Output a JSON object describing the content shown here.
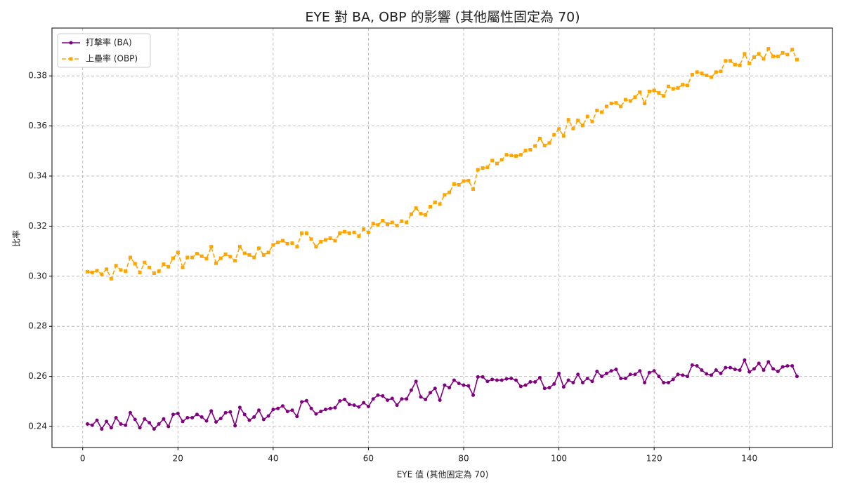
{
  "chart_data": {
    "type": "line",
    "title": "EYE 對 BA, OBP 的影響 (其他屬性固定為 70)",
    "x_label": "EYE 值 (其他固定為 70)",
    "y_label": "比率",
    "x": [
      1,
      2,
      3,
      4,
      5,
      6,
      7,
      8,
      9,
      10,
      11,
      12,
      13,
      14,
      15,
      16,
      17,
      18,
      19,
      20,
      21,
      22,
      23,
      24,
      25,
      26,
      27,
      28,
      29,
      30,
      31,
      32,
      33,
      34,
      35,
      36,
      37,
      38,
      39,
      40,
      41,
      42,
      43,
      44,
      45,
      46,
      47,
      48,
      49,
      50,
      51,
      52,
      53,
      54,
      55,
      56,
      57,
      58,
      59,
      60,
      61,
      62,
      63,
      64,
      65,
      66,
      67,
      68,
      69,
      70,
      71,
      72,
      73,
      74,
      75,
      76,
      77,
      78,
      79,
      80,
      81,
      82,
      83,
      84,
      85,
      86,
      87,
      88,
      89,
      90,
      91,
      92,
      93,
      94,
      95,
      96,
      97,
      98,
      99,
      100,
      101,
      102,
      103,
      104,
      105,
      106,
      107,
      108,
      109,
      110,
      111,
      112,
      113,
      114,
      115,
      116,
      117,
      118,
      119,
      120,
      121,
      122,
      123,
      124,
      125,
      126,
      127,
      128,
      129,
      130,
      131,
      132,
      133,
      134,
      135,
      136,
      137,
      138,
      139,
      140,
      141,
      142,
      143,
      144,
      145,
      146,
      147,
      148,
      149,
      150
    ],
    "series": [
      {
        "name": "打擊率 (BA)",
        "color": "#800080",
        "line_style": "solid",
        "marker": "circle",
        "values": [
          0.241,
          0.2405,
          0.2425,
          0.239,
          0.242,
          0.2395,
          0.2435,
          0.241,
          0.2405,
          0.2455,
          0.2428,
          0.2395,
          0.243,
          0.2415,
          0.239,
          0.241,
          0.243,
          0.24,
          0.2448,
          0.2452,
          0.242,
          0.2435,
          0.2435,
          0.2448,
          0.2438,
          0.2422,
          0.2462,
          0.2418,
          0.2432,
          0.2455,
          0.2458,
          0.2403,
          0.2476,
          0.2448,
          0.2425,
          0.2438,
          0.2465,
          0.2428,
          0.2442,
          0.2468,
          0.2472,
          0.2482,
          0.246,
          0.2465,
          0.244,
          0.2498,
          0.2503,
          0.2472,
          0.245,
          0.246,
          0.2468,
          0.2472,
          0.2475,
          0.2502,
          0.2508,
          0.2488,
          0.2485,
          0.2478,
          0.2495,
          0.248,
          0.251,
          0.2525,
          0.2522,
          0.2505,
          0.2512,
          0.2485,
          0.251,
          0.251,
          0.2545,
          0.258,
          0.2518,
          0.2508,
          0.2535,
          0.2552,
          0.2505,
          0.2565,
          0.2555,
          0.2585,
          0.2572,
          0.2565,
          0.2562,
          0.2525,
          0.2598,
          0.2598,
          0.258,
          0.2588,
          0.2585,
          0.2585,
          0.259,
          0.2592,
          0.2585,
          0.256,
          0.2565,
          0.2578,
          0.2578,
          0.2595,
          0.2552,
          0.2555,
          0.257,
          0.2612,
          0.2558,
          0.2585,
          0.2575,
          0.2608,
          0.2575,
          0.2592,
          0.258,
          0.262,
          0.26,
          0.2612,
          0.2622,
          0.2628,
          0.2592,
          0.2592,
          0.2608,
          0.2608,
          0.2622,
          0.2575,
          0.2615,
          0.2622,
          0.26,
          0.2575,
          0.2575,
          0.2588,
          0.2608,
          0.2605,
          0.26,
          0.2645,
          0.2642,
          0.2625,
          0.261,
          0.2605,
          0.2625,
          0.2612,
          0.2635,
          0.2635,
          0.2628,
          0.2625,
          0.2665,
          0.2618,
          0.263,
          0.2652,
          0.2625,
          0.2658,
          0.263,
          0.262,
          0.2638,
          0.2642,
          0.2642,
          0.26
        ]
      },
      {
        "name": "上壘率 (OBP)",
        "color": "#ffa500",
        "line_style": "dashed",
        "marker": "square",
        "values": [
          0.3018,
          0.3015,
          0.3022,
          0.3008,
          0.3028,
          0.299,
          0.3042,
          0.3025,
          0.302,
          0.3075,
          0.305,
          0.3015,
          0.3055,
          0.3035,
          0.3012,
          0.302,
          0.3048,
          0.3038,
          0.3072,
          0.3095,
          0.3035,
          0.3075,
          0.3075,
          0.309,
          0.308,
          0.307,
          0.3118,
          0.3052,
          0.3072,
          0.3088,
          0.3078,
          0.3062,
          0.3118,
          0.3092,
          0.3085,
          0.3075,
          0.3112,
          0.3085,
          0.3095,
          0.3125,
          0.3135,
          0.3142,
          0.313,
          0.3132,
          0.3118,
          0.3172,
          0.3172,
          0.3148,
          0.3118,
          0.3138,
          0.3145,
          0.3152,
          0.3142,
          0.3172,
          0.3178,
          0.3172,
          0.3175,
          0.316,
          0.3188,
          0.3175,
          0.321,
          0.3205,
          0.3222,
          0.3208,
          0.3215,
          0.3202,
          0.322,
          0.3215,
          0.3248,
          0.3272,
          0.325,
          0.3245,
          0.3278,
          0.3295,
          0.3288,
          0.3325,
          0.3335,
          0.3368,
          0.3365,
          0.338,
          0.3382,
          0.3348,
          0.3425,
          0.3432,
          0.3435,
          0.3462,
          0.345,
          0.3465,
          0.3485,
          0.3482,
          0.348,
          0.3485,
          0.3502,
          0.3505,
          0.352,
          0.355,
          0.3522,
          0.3532,
          0.3565,
          0.3588,
          0.356,
          0.3625,
          0.359,
          0.3622,
          0.3602,
          0.3638,
          0.3618,
          0.3662,
          0.3655,
          0.3678,
          0.369,
          0.3692,
          0.3678,
          0.3705,
          0.37,
          0.3715,
          0.3735,
          0.369,
          0.3738,
          0.3742,
          0.3732,
          0.372,
          0.3758,
          0.3748,
          0.3752,
          0.3765,
          0.3762,
          0.3805,
          0.3815,
          0.381,
          0.3802,
          0.3795,
          0.3815,
          0.3818,
          0.386,
          0.386,
          0.3845,
          0.3842,
          0.3888,
          0.385,
          0.3875,
          0.3888,
          0.3868,
          0.3908,
          0.3878,
          0.3878,
          0.3892,
          0.3885,
          0.3905,
          0.3865
        ]
      }
    ],
    "xlim": [
      -6.45,
      157.45
    ],
    "xticks": [
      0,
      20,
      40,
      60,
      80,
      100,
      120,
      140
    ],
    "ylim": [
      0.2316,
      0.3991
    ],
    "yticks": [
      0.24,
      0.26,
      0.28,
      {
        "value": 0.3,
        "label": "0.30"
      },
      0.32,
      0.34,
      0.36,
      0.38
    ],
    "grid": true,
    "legend": "upper-left"
  }
}
